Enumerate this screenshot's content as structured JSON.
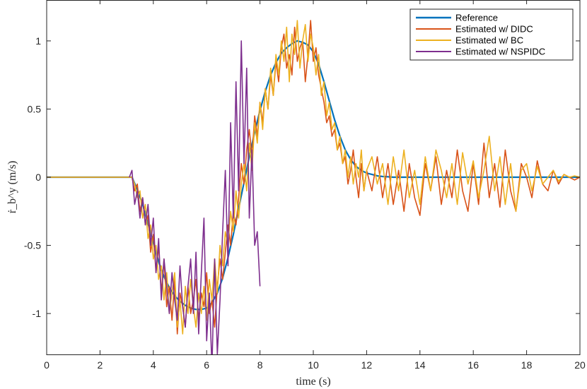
{
  "chart_data": {
    "type": "line",
    "xlabel": "time (s)",
    "ylabel": "ṙ_b^y (m/s)",
    "xlim": [
      0,
      20
    ],
    "ylim": [
      -1.3,
      1.3
    ],
    "xticks": [
      0,
      2,
      4,
      6,
      8,
      10,
      12,
      14,
      16,
      18,
      20
    ],
    "xtick_labels": [
      "0",
      "2",
      "4",
      "6",
      "8",
      "10",
      "12",
      "14",
      "16",
      "18",
      "20"
    ],
    "yticks": [
      -1,
      -0.5,
      0,
      0.5,
      1
    ],
    "ytick_labels": [
      "-1",
      "-0.5",
      "0",
      "0.5",
      "1"
    ],
    "grid": false,
    "legend_position": "top-right",
    "series": [
      {
        "name": "Reference",
        "color": "#0072BD",
        "x": [
          0,
          3.2,
          3.4,
          3.6,
          3.8,
          4.0,
          4.2,
          4.4,
          4.6,
          4.8,
          5.0,
          5.2,
          5.4,
          5.6,
          5.8,
          6.0,
          6.2,
          6.4,
          6.6,
          6.8,
          7.0,
          7.2,
          7.4,
          7.6,
          7.8,
          8.0,
          8.2,
          8.4,
          8.6,
          8.8,
          9.0,
          9.2,
          9.4,
          9.6,
          9.8,
          10.0,
          10.2,
          10.4,
          10.6,
          10.8,
          11.0,
          11.2,
          11.4,
          11.6,
          11.8,
          12.0,
          12.2,
          12.4,
          12.6,
          12.8,
          13.0,
          13.4,
          13.8,
          14.2,
          15,
          16,
          17,
          18,
          19,
          20
        ],
        "y": [
          0,
          0,
          -0.09,
          -0.2,
          -0.34,
          -0.48,
          -0.62,
          -0.73,
          -0.81,
          -0.87,
          -0.91,
          -0.94,
          -0.96,
          -0.97,
          -0.97,
          -0.96,
          -0.92,
          -0.85,
          -0.74,
          -0.59,
          -0.42,
          -0.23,
          -0.04,
          0.15,
          0.33,
          0.49,
          0.63,
          0.75,
          0.84,
          0.91,
          0.95,
          0.98,
          1.0,
          0.99,
          0.97,
          0.92,
          0.83,
          0.7,
          0.56,
          0.42,
          0.3,
          0.2,
          0.13,
          0.08,
          0.05,
          0.03,
          0.02,
          0.01,
          0.005,
          0.003,
          0.0,
          0,
          0,
          0,
          0,
          0,
          0,
          0,
          0,
          0
        ]
      },
      {
        "name": "Estimated w/ DIDC",
        "color": "#D95319",
        "x": [
          0,
          3.2,
          3.3,
          3.4,
          3.5,
          3.6,
          3.7,
          3.8,
          3.9,
          4.0,
          4.1,
          4.2,
          4.3,
          4.4,
          4.5,
          4.6,
          4.7,
          4.8,
          4.9,
          5.0,
          5.1,
          5.2,
          5.3,
          5.4,
          5.5,
          5.6,
          5.7,
          5.8,
          5.9,
          6.0,
          6.1,
          6.2,
          6.3,
          6.4,
          6.5,
          6.6,
          6.7,
          6.8,
          6.9,
          7.0,
          7.1,
          7.2,
          7.3,
          7.4,
          7.5,
          7.6,
          7.7,
          7.8,
          7.9,
          8.0,
          8.1,
          8.2,
          8.3,
          8.4,
          8.5,
          8.6,
          8.7,
          8.8,
          8.9,
          9.0,
          9.1,
          9.2,
          9.3,
          9.4,
          9.5,
          9.6,
          9.7,
          9.8,
          9.9,
          10.0,
          10.1,
          10.2,
          10.3,
          10.4,
          10.5,
          10.6,
          10.7,
          10.8,
          10.9,
          11.0,
          11.1,
          11.2,
          11.3,
          11.4,
          11.5,
          11.6,
          11.7,
          11.8,
          11.9,
          12.0,
          12.2,
          12.4,
          12.6,
          12.8,
          13.0,
          13.2,
          13.4,
          13.6,
          13.8,
          14.0,
          14.2,
          14.4,
          14.6,
          14.8,
          15.0,
          15.2,
          15.4,
          15.6,
          15.8,
          16.0,
          16.2,
          16.4,
          16.6,
          16.8,
          17.0,
          17.2,
          17.4,
          17.6,
          17.8,
          18.0,
          18.2,
          18.4,
          18.6,
          18.8,
          19.0,
          19.2,
          19.4,
          19.6,
          19.8,
          20.0
        ],
        "y": [
          0,
          0,
          -0.1,
          -0.05,
          -0.25,
          -0.15,
          -0.35,
          -0.28,
          -0.55,
          -0.42,
          -0.7,
          -0.5,
          -0.85,
          -0.6,
          -0.95,
          -0.8,
          -1.05,
          -0.75,
          -1.15,
          -0.85,
          -0.95,
          -1.1,
          -0.8,
          -1.0,
          -0.9,
          -0.75,
          -1.05,
          -0.85,
          -0.95,
          -0.7,
          -1.0,
          -0.9,
          -1.1,
          -0.8,
          -0.6,
          -0.75,
          -0.55,
          -0.35,
          -0.5,
          -0.25,
          -0.35,
          -0.15,
          0.1,
          -0.05,
          0.2,
          0.35,
          0.15,
          0.45,
          0.3,
          0.55,
          0.4,
          0.65,
          0.5,
          0.75,
          0.6,
          0.85,
          0.7,
          0.95,
          1.05,
          0.8,
          0.9,
          0.75,
          1.1,
          0.85,
          0.95,
          1.0,
          0.7,
          0.9,
          1.15,
          0.85,
          0.95,
          0.75,
          0.65,
          0.55,
          0.4,
          0.45,
          0.3,
          0.35,
          0.2,
          0.25,
          0.1,
          0.15,
          -0.05,
          0.05,
          0.2,
          0.0,
          -0.15,
          0.1,
          -0.1,
          0.05,
          -0.1,
          0.15,
          -0.15,
          0.1,
          -0.2,
          0.05,
          -0.25,
          0.1,
          -0.15,
          -0.28,
          0.1,
          -0.1,
          0.15,
          -0.2,
          0.05,
          -0.15,
          0.2,
          -0.1,
          -0.25,
          0.1,
          -0.2,
          0.25,
          -0.15,
          0.1,
          -0.22,
          0.2,
          -0.1,
          -0.25,
          0.1,
          0.0,
          -0.15,
          0.12,
          -0.05,
          -0.1,
          0.05,
          -0.05,
          0.02,
          0.0,
          -0.02,
          0.0
        ]
      },
      {
        "name": "Estimated w/ BC",
        "color": "#EDB120",
        "x": [
          0,
          3.2,
          3.3,
          3.4,
          3.5,
          3.6,
          3.7,
          3.8,
          3.9,
          4.0,
          4.1,
          4.2,
          4.3,
          4.4,
          4.5,
          4.6,
          4.7,
          4.8,
          4.9,
          5.0,
          5.1,
          5.2,
          5.3,
          5.4,
          5.5,
          5.6,
          5.7,
          5.8,
          5.9,
          6.0,
          6.1,
          6.2,
          6.3,
          6.4,
          6.5,
          6.6,
          6.7,
          6.8,
          6.9,
          7.0,
          7.1,
          7.2,
          7.3,
          7.4,
          7.5,
          7.6,
          7.7,
          7.8,
          7.9,
          8.0,
          8.1,
          8.2,
          8.3,
          8.4,
          8.5,
          8.6,
          8.7,
          8.8,
          8.9,
          9.0,
          9.1,
          9.2,
          9.3,
          9.4,
          9.5,
          9.6,
          9.7,
          9.8,
          9.9,
          10.0,
          10.1,
          10.2,
          10.3,
          10.4,
          10.5,
          10.6,
          10.7,
          10.8,
          10.9,
          11.0,
          11.1,
          11.2,
          11.3,
          11.4,
          11.5,
          11.6,
          11.7,
          11.8,
          11.9,
          12.0,
          12.2,
          12.4,
          12.6,
          12.8,
          13.0,
          13.2,
          13.4,
          13.6,
          13.8,
          14.0,
          14.2,
          14.4,
          14.6,
          14.8,
          15.0,
          15.2,
          15.4,
          15.6,
          15.8,
          16.0,
          16.2,
          16.4,
          16.6,
          16.8,
          17.0,
          17.2,
          17.4,
          17.6,
          17.8,
          18.0,
          18.2,
          18.4,
          18.6,
          18.8,
          19.0,
          19.2,
          19.4,
          19.6,
          19.8,
          20.0
        ],
        "y": [
          0,
          0,
          -0.05,
          -0.15,
          -0.1,
          -0.3,
          -0.2,
          -0.45,
          -0.35,
          -0.6,
          -0.5,
          -0.75,
          -0.65,
          -0.9,
          -0.7,
          -1.0,
          -0.85,
          -0.7,
          -1.1,
          -0.9,
          -1.15,
          -0.8,
          -1.0,
          -0.75,
          -0.95,
          -1.1,
          -0.85,
          -1.0,
          -0.8,
          -1.05,
          -0.75,
          -0.9,
          -0.6,
          -0.85,
          -0.5,
          -0.65,
          -0.4,
          -0.5,
          -0.25,
          -0.4,
          -0.1,
          -0.3,
          -0.05,
          0.1,
          -0.1,
          0.25,
          0.05,
          0.4,
          0.25,
          0.55,
          0.35,
          0.65,
          0.5,
          0.8,
          0.6,
          0.9,
          0.75,
          1.0,
          0.85,
          1.1,
          0.7,
          1.05,
          0.9,
          1.15,
          0.8,
          1.0,
          1.12,
          0.85,
          1.05,
          0.95,
          0.75,
          0.9,
          0.6,
          0.7,
          0.45,
          0.55,
          0.35,
          0.4,
          0.2,
          0.3,
          0.1,
          0.2,
          0.0,
          0.15,
          -0.05,
          0.1,
          0.0,
          0.2,
          -0.1,
          0.05,
          0.15,
          -0.05,
          0.1,
          -0.2,
          0.15,
          -0.1,
          0.2,
          -0.15,
          0.05,
          -0.2,
          0.15,
          -0.1,
          0.2,
          0.05,
          -0.15,
          0.1,
          -0.2,
          0.18,
          -0.05,
          0.12,
          -0.15,
          0.05,
          0.3,
          -0.1,
          0.15,
          -0.2,
          0.1,
          -0.25,
          0.05,
          0.1,
          -0.1,
          0.08,
          -0.05,
          0.0,
          0.05,
          -0.03,
          0.02,
          0.0,
          0.01,
          0.0
        ]
      },
      {
        "name": "Estimated w/ NSPIDC",
        "color": "#7E2F8E",
        "x": [
          3.1,
          3.2,
          3.3,
          3.4,
          3.5,
          3.6,
          3.7,
          3.8,
          3.9,
          4.0,
          4.1,
          4.2,
          4.3,
          4.4,
          4.5,
          4.6,
          4.7,
          4.8,
          4.9,
          5.0,
          5.1,
          5.2,
          5.3,
          5.4,
          5.5,
          5.6,
          5.7,
          5.8,
          5.9,
          6.0,
          6.1,
          6.2,
          6.3,
          6.4,
          6.5,
          6.6,
          6.7,
          6.8,
          6.9,
          7.0,
          7.1,
          7.2,
          7.3,
          7.4,
          7.5,
          7.6,
          7.7,
          7.8,
          7.9,
          8.0
        ],
        "y": [
          0,
          0.05,
          -0.2,
          -0.1,
          -0.3,
          -0.15,
          -0.35,
          -0.2,
          -0.5,
          -0.3,
          -0.7,
          -0.45,
          -0.9,
          -0.6,
          -0.8,
          -1.0,
          -0.7,
          -0.9,
          -1.05,
          -0.65,
          -0.95,
          -1.1,
          -0.8,
          -0.6,
          -1.0,
          -0.55,
          -1.15,
          -0.7,
          -0.3,
          -1.2,
          -0.85,
          -1.4,
          -0.6,
          -1.3,
          -0.9,
          -0.4,
          0.05,
          -0.65,
          0.4,
          -0.3,
          0.7,
          -0.1,
          1.0,
          0.1,
          0.8,
          -0.3,
          0.2,
          -0.5,
          -0.4,
          -0.8
        ]
      }
    ]
  }
}
